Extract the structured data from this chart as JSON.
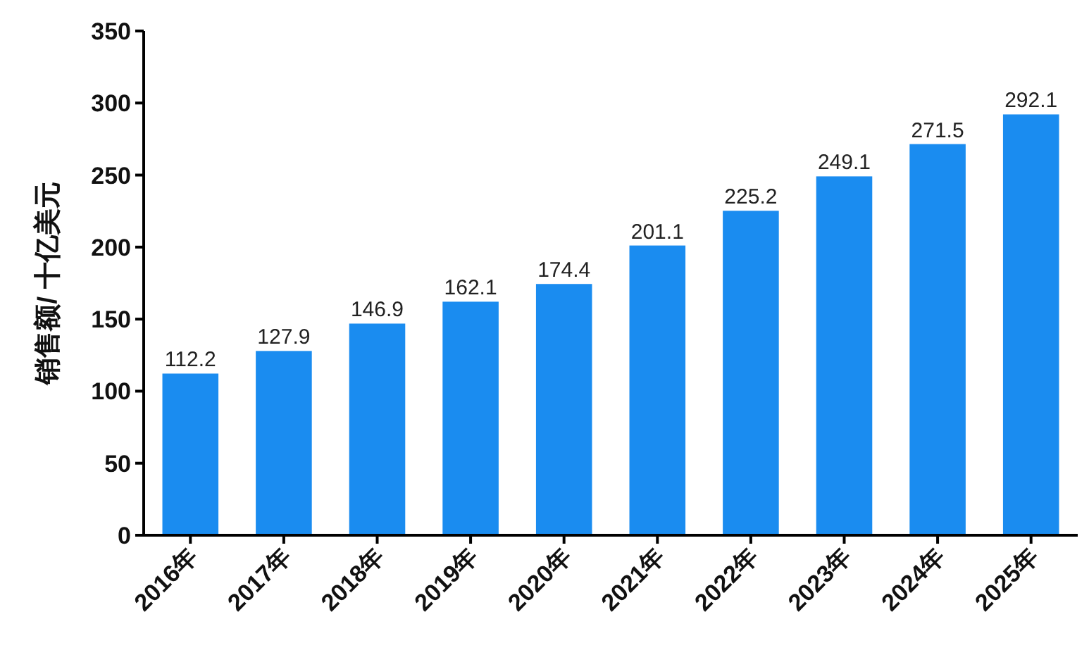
{
  "chart_data": {
    "type": "bar",
    "ylabel": "销售额/ 十亿美元",
    "categories": [
      "2016年",
      "2017年",
      "2018年",
      "2019年",
      "2020年",
      "2021年",
      "2022年",
      "2023年",
      "2024年",
      "2025年"
    ],
    "values": [
      112.2,
      127.9,
      146.9,
      162.1,
      174.4,
      201.1,
      225.2,
      249.1,
      271.5,
      292.1
    ],
    "color": "#1a8cf0",
    "ylim": [
      0,
      350
    ],
    "yticks": [
      0,
      50,
      100,
      150,
      200,
      250,
      300,
      350
    ],
    "data_labels": true,
    "grid": false
  }
}
